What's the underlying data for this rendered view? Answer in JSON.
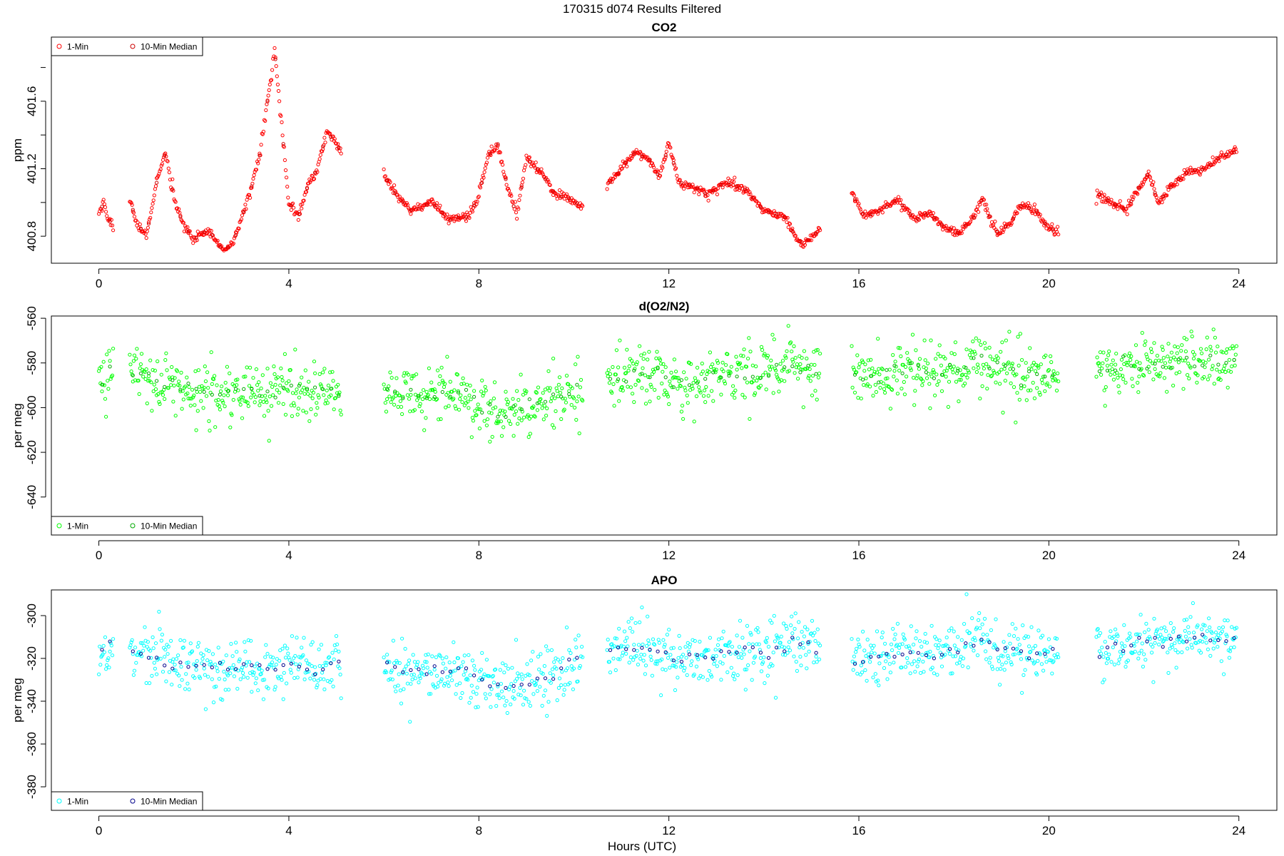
{
  "figure": {
    "title": "170315   d074   Results Filtered",
    "xlabel": "Hours (UTC)"
  },
  "chart_data": [
    {
      "type": "scatter",
      "title": "CO2",
      "ylabel": "ppm",
      "xlim": [
        -1.0,
        24.8
      ],
      "ylim": [
        400.64,
        401.98
      ],
      "xticks": [
        0,
        4,
        8,
        12,
        16,
        20,
        24
      ],
      "yticks": [
        400.8,
        401.2,
        401.6
      ],
      "ytick_labels": [
        "400.8",
        "401.2",
        "401.6"
      ],
      "legend": {
        "position": "top-left",
        "entries": [
          "1-Min",
          "10-Min Median"
        ]
      },
      "colors": {
        "one_min": "#ff0000",
        "median": "#cc0000"
      },
      "segments": [
        {
          "start": 0.0,
          "end": 0.3,
          "knots": [
            [
              0.0,
              400.93
            ],
            [
              0.1,
              401.0
            ],
            [
              0.2,
              400.9
            ],
            [
              0.3,
              400.86
            ]
          ]
        },
        {
          "start": 0.65,
          "end": 5.1,
          "knots": [
            [
              0.65,
              401.02
            ],
            [
              0.8,
              400.88
            ],
            [
              1.0,
              400.8
            ],
            [
              1.2,
              401.1
            ],
            [
              1.4,
              401.3
            ],
            [
              1.6,
              401.0
            ],
            [
              1.8,
              400.86
            ],
            [
              2.0,
              400.78
            ],
            [
              2.3,
              400.84
            ],
            [
              2.6,
              400.72
            ],
            [
              2.8,
              400.74
            ],
            [
              3.0,
              400.9
            ],
            [
              3.2,
              401.08
            ],
            [
              3.4,
              401.3
            ],
            [
              3.55,
              401.6
            ],
            [
              3.7,
              401.9
            ],
            [
              3.85,
              401.45
            ],
            [
              4.0,
              401.0
            ],
            [
              4.2,
              400.92
            ],
            [
              4.4,
              401.1
            ],
            [
              4.6,
              401.2
            ],
            [
              4.8,
              401.42
            ],
            [
              5.0,
              401.35
            ],
            [
              5.1,
              401.3
            ]
          ]
        },
        {
          "start": 6.0,
          "end": 10.2,
          "knots": [
            [
              6.0,
              401.16
            ],
            [
              6.3,
              401.03
            ],
            [
              6.6,
              400.95
            ],
            [
              7.0,
              401.0
            ],
            [
              7.4,
              400.9
            ],
            [
              7.8,
              400.92
            ],
            [
              8.0,
              401.04
            ],
            [
              8.2,
              401.28
            ],
            [
              8.4,
              401.34
            ],
            [
              8.6,
              401.1
            ],
            [
              8.8,
              400.92
            ],
            [
              9.0,
              401.26
            ],
            [
              9.3,
              401.18
            ],
            [
              9.6,
              401.05
            ],
            [
              9.9,
              401.02
            ],
            [
              10.2,
              400.97
            ]
          ]
        },
        {
          "start": 10.7,
          "end": 15.2,
          "knots": [
            [
              10.7,
              401.1
            ],
            [
              11.0,
              401.2
            ],
            [
              11.3,
              401.3
            ],
            [
              11.6,
              401.25
            ],
            [
              11.8,
              401.15
            ],
            [
              12.0,
              401.35
            ],
            [
              12.2,
              401.12
            ],
            [
              12.5,
              401.1
            ],
            [
              12.8,
              401.05
            ],
            [
              13.2,
              401.12
            ],
            [
              13.6,
              401.08
            ],
            [
              14.0,
              400.95
            ],
            [
              14.4,
              400.92
            ],
            [
              14.8,
              400.75
            ],
            [
              15.2,
              400.84
            ]
          ]
        },
        {
          "start": 15.85,
          "end": 20.2,
          "knots": [
            [
              15.85,
              401.06
            ],
            [
              16.1,
              400.92
            ],
            [
              16.5,
              400.96
            ],
            [
              16.8,
              401.02
            ],
            [
              17.2,
              400.9
            ],
            [
              17.5,
              400.94
            ],
            [
              17.8,
              400.85
            ],
            [
              18.1,
              400.82
            ],
            [
              18.4,
              400.9
            ],
            [
              18.6,
              401.02
            ],
            [
              18.9,
              400.82
            ],
            [
              19.2,
              400.88
            ],
            [
              19.4,
              400.98
            ],
            [
              19.7,
              400.96
            ],
            [
              20.0,
              400.85
            ],
            [
              20.2,
              400.82
            ]
          ]
        },
        {
          "start": 21.0,
          "end": 23.95,
          "knots": [
            [
              21.0,
              401.06
            ],
            [
              21.3,
              401.0
            ],
            [
              21.6,
              400.96
            ],
            [
              21.9,
              401.08
            ],
            [
              22.1,
              401.18
            ],
            [
              22.3,
              401.0
            ],
            [
              22.6,
              401.1
            ],
            [
              22.9,
              401.18
            ],
            [
              23.3,
              401.2
            ],
            [
              23.6,
              401.27
            ],
            [
              23.95,
              401.3
            ]
          ]
        }
      ]
    },
    {
      "type": "scatter",
      "title": "d(O2/N2)",
      "ylabel": "per meg",
      "xlim": [
        -1.0,
        24.8
      ],
      "ylim": [
        -657,
        -559
      ],
      "xticks": [
        0,
        4,
        8,
        12,
        16,
        20,
        24
      ],
      "yticks": [
        -640,
        -620,
        -600,
        -580,
        -560
      ],
      "ytick_labels": [
        "-640",
        "-620",
        "-600",
        "-580",
        "-560"
      ],
      "legend": {
        "position": "bottom-left",
        "entries": [
          "1-Min",
          "10-Min Median"
        ]
      },
      "colors": {
        "one_min": "#00ff00",
        "median": "#00aa00"
      },
      "segments": [
        {
          "start": 0.0,
          "end": 0.3,
          "knots": [
            [
              0.0,
              -590
            ],
            [
              0.3,
              -580
            ]
          ]
        },
        {
          "start": 0.65,
          "end": 5.1,
          "knots": [
            [
              0.65,
              -582
            ],
            [
              1.0,
              -586
            ],
            [
              1.5,
              -590
            ],
            [
              2.0,
              -592
            ],
            [
              2.5,
              -594
            ],
            [
              3.0,
              -591
            ],
            [
              3.5,
              -594
            ],
            [
              4.0,
              -591
            ],
            [
              4.5,
              -593
            ],
            [
              5.1,
              -592
            ]
          ]
        },
        {
          "start": 6.0,
          "end": 10.2,
          "knots": [
            [
              6.0,
              -594
            ],
            [
              7.0,
              -595
            ],
            [
              7.6,
              -592
            ],
            [
              8.0,
              -598
            ],
            [
              8.5,
              -603
            ],
            [
              9.0,
              -600
            ],
            [
              9.5,
              -596
            ],
            [
              10.2,
              -590
            ]
          ]
        },
        {
          "start": 10.7,
          "end": 15.2,
          "knots": [
            [
              10.7,
              -587
            ],
            [
              11.5,
              -585
            ],
            [
              12.0,
              -588
            ],
            [
              12.5,
              -590
            ],
            [
              13.0,
              -587
            ],
            [
              13.5,
              -586
            ],
            [
              14.0,
              -586
            ],
            [
              14.5,
              -581
            ],
            [
              15.2,
              -583
            ]
          ]
        },
        {
          "start": 15.85,
          "end": 20.2,
          "knots": [
            [
              15.85,
              -588
            ],
            [
              16.5,
              -585
            ],
            [
              17.0,
              -583
            ],
            [
              17.5,
              -585
            ],
            [
              18.0,
              -583
            ],
            [
              18.6,
              -578
            ],
            [
              19.0,
              -583
            ],
            [
              19.5,
              -585
            ],
            [
              20.2,
              -585
            ]
          ]
        },
        {
          "start": 21.0,
          "end": 23.95,
          "knots": [
            [
              21.0,
              -584
            ],
            [
              21.6,
              -583
            ],
            [
              22.0,
              -581
            ],
            [
              22.6,
              -580
            ],
            [
              23.0,
              -578
            ],
            [
              23.5,
              -581
            ],
            [
              23.95,
              -579
            ]
          ]
        }
      ]
    },
    {
      "type": "scatter",
      "title": "APO",
      "ylabel": "per meg",
      "xlim": [
        -1.0,
        24.8
      ],
      "ylim": [
        -391,
        -288
      ],
      "xticks": [
        0,
        4,
        8,
        12,
        16,
        20,
        24
      ],
      "yticks": [
        -380,
        -360,
        -340,
        -320,
        -300
      ],
      "ytick_labels": [
        "-380",
        "-360",
        "-340",
        "-320",
        "-300"
      ],
      "legend": {
        "position": "bottom-left",
        "entries": [
          "1-Min",
          "10-Min Median"
        ]
      },
      "colors": {
        "one_min": "#00ffff",
        "median": "#00008b"
      },
      "segments": [
        {
          "start": 0.0,
          "end": 0.3,
          "knots": [
            [
              0.0,
              -320
            ],
            [
              0.3,
              -311
            ]
          ]
        },
        {
          "start": 0.65,
          "end": 5.1,
          "knots": [
            [
              0.65,
              -315
            ],
            [
              1.0,
              -319
            ],
            [
              1.5,
              -322
            ],
            [
              2.0,
              -324
            ],
            [
              2.5,
              -326
            ],
            [
              3.0,
              -322
            ],
            [
              3.5,
              -325
            ],
            [
              4.0,
              -322
            ],
            [
              4.5,
              -325
            ],
            [
              5.1,
              -322
            ]
          ]
        },
        {
          "start": 6.0,
          "end": 10.2,
          "knots": [
            [
              6.0,
              -325
            ],
            [
              7.0,
              -328
            ],
            [
              7.6,
              -325
            ],
            [
              8.0,
              -330
            ],
            [
              8.5,
              -334
            ],
            [
              9.0,
              -331
            ],
            [
              9.5,
              -328
            ],
            [
              10.2,
              -320
            ]
          ]
        },
        {
          "start": 10.7,
          "end": 15.2,
          "knots": [
            [
              10.7,
              -317
            ],
            [
              11.5,
              -316
            ],
            [
              12.0,
              -320
            ],
            [
              12.5,
              -322
            ],
            [
              13.0,
              -318
            ],
            [
              13.5,
              -316
            ],
            [
              14.0,
              -319
            ],
            [
              14.5,
              -313
            ],
            [
              15.2,
              -315
            ]
          ]
        },
        {
          "start": 15.85,
          "end": 20.2,
          "knots": [
            [
              15.85,
              -322
            ],
            [
              16.5,
              -319
            ],
            [
              17.0,
              -316
            ],
            [
              17.5,
              -318
            ],
            [
              18.0,
              -316
            ],
            [
              18.6,
              -311
            ],
            [
              19.0,
              -316
            ],
            [
              19.5,
              -318
            ],
            [
              20.2,
              -318
            ]
          ]
        },
        {
          "start": 21.0,
          "end": 23.95,
          "knots": [
            [
              21.0,
              -316
            ],
            [
              21.6,
              -315
            ],
            [
              22.0,
              -313
            ],
            [
              22.6,
              -312
            ],
            [
              23.0,
              -309
            ],
            [
              23.5,
              -312
            ],
            [
              23.95,
              -310
            ]
          ]
        }
      ]
    }
  ]
}
